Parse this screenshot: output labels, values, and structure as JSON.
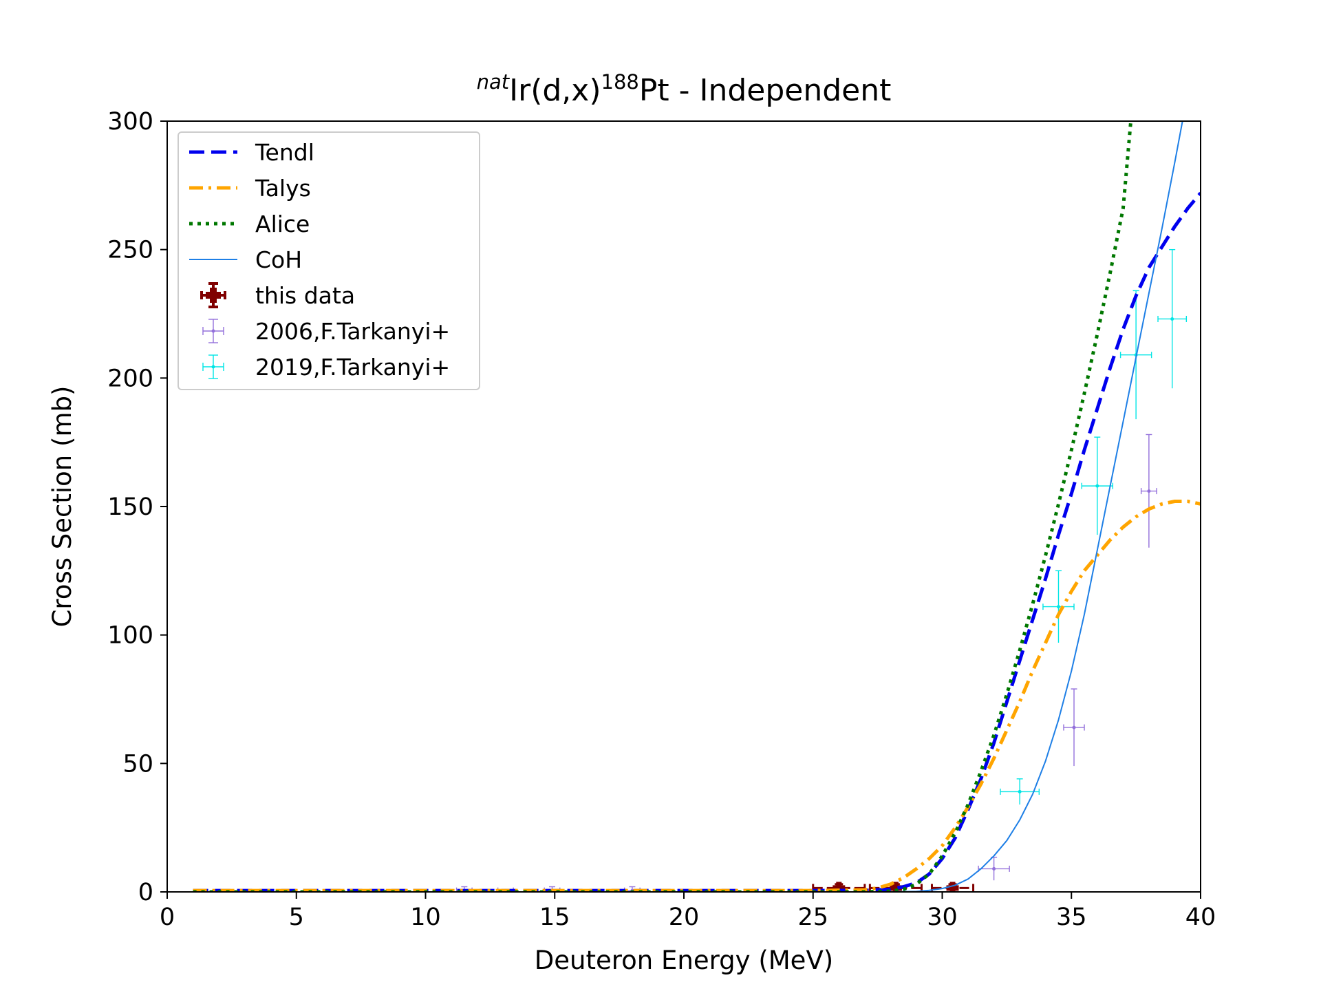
{
  "chart_data": {
    "type": "line",
    "title": {
      "prefix_sup": "nat",
      "main": "Ir(d,x)",
      "mid_sup": "188",
      "suffix": "Pt - Independent"
    },
    "xlabel": "Deuteron Energy (MeV)",
    "ylabel": "Cross Section (mb)",
    "xlim": [
      0,
      40
    ],
    "ylim": [
      0,
      300
    ],
    "xticks": [
      0,
      5,
      10,
      15,
      20,
      25,
      30,
      35,
      40
    ],
    "yticks": [
      0,
      50,
      100,
      150,
      200,
      250,
      300
    ],
    "grid": false,
    "legend_position": "top-left",
    "series": [
      {
        "name": "Tendl",
        "style": "dashed",
        "color": "#0000ee",
        "x": [
          1,
          20,
          25,
          27,
          28,
          28.5,
          29,
          29.5,
          30,
          30.5,
          31,
          31.5,
          32,
          32.5,
          33,
          33.5,
          34,
          34.5,
          35,
          35.5,
          36,
          36.5,
          37,
          37.5,
          38,
          38.5,
          39,
          39.5,
          40
        ],
        "y": [
          0.5,
          0.5,
          0.5,
          0.6,
          1,
          2,
          3.5,
          7,
          13,
          21,
          32,
          44,
          58,
          74,
          90,
          106,
          122,
          139,
          155,
          172,
          188,
          204,
          219,
          232,
          243,
          251,
          259,
          266,
          272
        ]
      },
      {
        "name": "Talys",
        "style": "dashdot",
        "color": "#ffa500",
        "x": [
          1,
          20,
          25,
          27,
          27.5,
          28,
          28.5,
          29,
          29.5,
          30,
          30.5,
          31,
          31.5,
          32,
          32.5,
          33,
          33.5,
          34,
          34.5,
          35,
          35.5,
          36,
          36.5,
          37,
          37.5,
          38,
          38.5,
          39,
          39.5,
          40
        ],
        "y": [
          0.5,
          0.5,
          0.5,
          0.8,
          1.5,
          3,
          5.5,
          9,
          13,
          18,
          25,
          33,
          42,
          52,
          63,
          74,
          86,
          97,
          108,
          117,
          125,
          131,
          137,
          142,
          146,
          149,
          151,
          152,
          152,
          151
        ]
      },
      {
        "name": "Alice",
        "style": "dotted",
        "color": "#007700",
        "x": [
          1,
          20,
          27,
          28,
          28.5,
          29,
          29.5,
          30,
          30.5,
          31,
          31.5,
          32,
          32.5,
          33,
          33.5,
          34,
          34.5,
          35,
          35.5,
          36,
          36.5,
          37,
          37.3
        ],
        "y": [
          0,
          0,
          0,
          0.3,
          1,
          3,
          7,
          14,
          23,
          34,
          47,
          61,
          77,
          94,
          112,
          131,
          151,
          172,
          194,
          217,
          241,
          266,
          300
        ]
      },
      {
        "name": "CoH",
        "style": "solid",
        "color": "#1e7fe6",
        "x": [
          1,
          20,
          28,
          29,
          29.5,
          30,
          30.5,
          31,
          31.5,
          32,
          32.5,
          33,
          33.5,
          34,
          34.5,
          35,
          35.5,
          36,
          36.5,
          37,
          37.5,
          38,
          38.5,
          39,
          39.3
        ],
        "y": [
          0,
          0,
          0,
          0.2,
          0.6,
          1.3,
          2.6,
          5,
          9,
          14,
          20,
          28,
          38,
          51,
          67,
          86,
          108,
          133,
          158,
          183,
          208,
          233,
          258,
          284,
          300
        ]
      }
    ],
    "points": [
      {
        "name": "this data",
        "color": "#800000",
        "marker": "plus",
        "x": [
          26,
          28.2,
          30.4
        ],
        "y": [
          1.5,
          1.5,
          1.5
        ],
        "xerr": [
          1,
          1,
          0.8
        ],
        "yerr": [
          1.5,
          1.5,
          1.5
        ]
      },
      {
        "name": "2006,F.Tarkanyi+",
        "color": "#9370db",
        "marker": "dot",
        "x": [
          11.5,
          13.1,
          14.9,
          18.0,
          32.0,
          35.1,
          38.0
        ],
        "y": [
          0.5,
          0.5,
          0.5,
          0.5,
          9,
          64,
          156
        ],
        "xerr": [
          0.3,
          0.3,
          0.3,
          0.3,
          0.6,
          0.4,
          0.3
        ],
        "yerr": [
          1.5,
          0.3,
          1.5,
          1.5,
          4.5,
          15,
          22
        ]
      },
      {
        "name": "2019,F.Tarkanyi+",
        "color": "#00e5e5",
        "marker": "dot",
        "x": [
          33.0,
          34.5,
          36.0,
          37.5,
          38.9
        ],
        "y": [
          39,
          111,
          158,
          209,
          223
        ],
        "xerr": [
          0.75,
          0.6,
          0.6,
          0.6,
          0.55
        ],
        "yerr": [
          5,
          14,
          19,
          25,
          27
        ]
      }
    ]
  }
}
